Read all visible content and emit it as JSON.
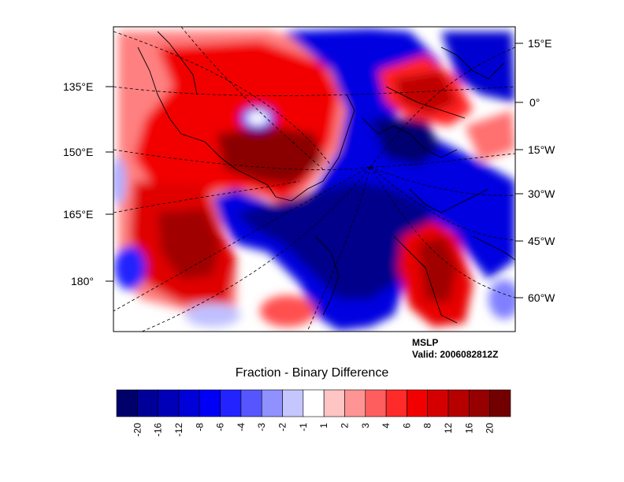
{
  "map": {
    "variable": "MSLP",
    "valid_text": "Valid: 2006082812Z",
    "title": "Fraction - Binary Difference",
    "left_labels": [
      "135°E",
      "150°E",
      "165°E",
      "180°"
    ],
    "right_labels": [
      "15°E",
      "0°",
      "15°W",
      "30°W",
      "45°W",
      "60°W"
    ]
  },
  "colorbar": {
    "labels": [
      "-20",
      "-16",
      "-12",
      "-8",
      "-6",
      "-4",
      "-3",
      "-2",
      "-1",
      "1",
      "2",
      "3",
      "4",
      "6",
      "8",
      "12",
      "16",
      "20"
    ],
    "colors": [
      "#00006b",
      "#000098",
      "#0000b8",
      "#0000d8",
      "#0000f6",
      "#2323ff",
      "#5656ff",
      "#9090ff",
      "#c6c6ff",
      "#ffffff",
      "#ffc4c4",
      "#ff9494",
      "#ff5e5e",
      "#ff2a2a",
      "#f20000",
      "#d40000",
      "#b60000",
      "#960000",
      "#720000"
    ]
  }
}
